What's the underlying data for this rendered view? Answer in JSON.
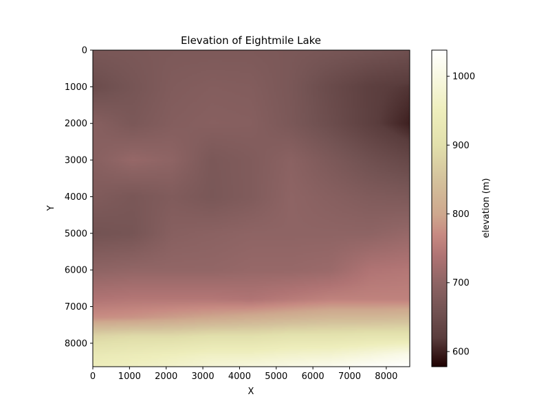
{
  "chart_data": {
    "type": "heatmap",
    "title": "Elevation of Eightmile Lake",
    "xlabel": "X",
    "ylabel": "Y",
    "xlim": [
      0,
      8640
    ],
    "ylim": [
      8640,
      0
    ],
    "x_ticks": [
      0,
      1000,
      2000,
      3000,
      4000,
      5000,
      6000,
      7000,
      8000
    ],
    "y_ticks": [
      0,
      1000,
      2000,
      3000,
      4000,
      5000,
      6000,
      7000,
      8000
    ],
    "colormap": "pink",
    "colorbar": {
      "label": "elevation (m)",
      "range": [
        578,
        1038
      ],
      "ticks": [
        600,
        700,
        800,
        900,
        1000
      ],
      "stops": [
        {
          "v": 578,
          "color": "#1e0000"
        },
        {
          "v": 620,
          "color": "#5a3d3d"
        },
        {
          "v": 660,
          "color": "#735353"
        },
        {
          "v": 700,
          "color": "#8e6464"
        },
        {
          "v": 740,
          "color": "#b07474"
        },
        {
          "v": 770,
          "color": "#c78a82"
        },
        {
          "v": 800,
          "color": "#cea88e"
        },
        {
          "v": 850,
          "color": "#d4c29c"
        },
        {
          "v": 900,
          "color": "#e2e0ac"
        },
        {
          "v": 950,
          "color": "#eeeebc"
        },
        {
          "v": 1000,
          "color": "#f8f8e2"
        },
        {
          "v": 1038,
          "color": "#ffffff"
        }
      ]
    },
    "grid": false,
    "elevation_grid": {
      "x": [
        0,
        1080,
        2160,
        3240,
        4320,
        5400,
        6480,
        7560,
        8640
      ],
      "y": [
        0,
        1000,
        2000,
        3000,
        4000,
        5000,
        6000,
        6800,
        7300,
        7800,
        8300,
        8640
      ],
      "z": [
        [
          670,
          672,
          675,
          675,
          675,
          672,
          668,
          662,
          655
        ],
        [
          648,
          665,
          680,
          685,
          683,
          670,
          645,
          625,
          615
        ],
        [
          690,
          672,
          685,
          690,
          688,
          672,
          650,
          625,
          600
        ],
        [
          690,
          710,
          700,
          672,
          680,
          695,
          675,
          655,
          640
        ],
        [
          680,
          670,
          680,
          670,
          680,
          700,
          690,
          680,
          675
        ],
        [
          660,
          665,
          690,
          695,
          700,
          700,
          700,
          700,
          710
        ],
        [
          700,
          705,
          705,
          705,
          710,
          710,
          715,
          740,
          745
        ],
        [
          740,
          745,
          745,
          745,
          740,
          750,
          760,
          760,
          760
        ],
        [
          775,
          780,
          790,
          800,
          810,
          820,
          830,
          830,
          835
        ],
        [
          880,
          890,
          890,
          900,
          900,
          910,
          910,
          915,
          915
        ],
        [
          930,
          940,
          950,
          960,
          960,
          970,
          975,
          990,
          1010
        ],
        [
          950,
          960,
          970,
          985,
          995,
          1005,
          1015,
          1030,
          1038
        ]
      ]
    }
  }
}
